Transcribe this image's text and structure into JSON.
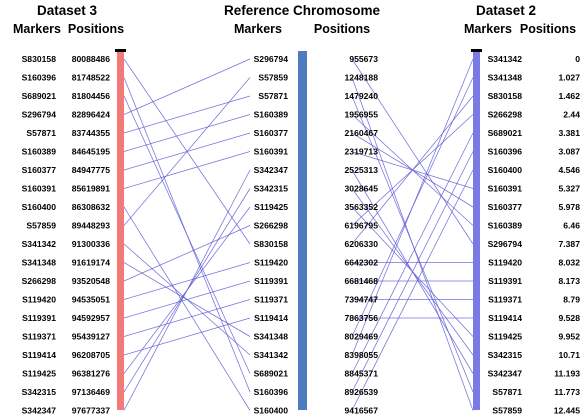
{
  "panels": [
    {
      "title": "Dataset 3",
      "col_markers": "Markers",
      "col_positions": "Positions",
      "bar_color": "#f47a7a",
      "rows": [
        {
          "marker": "S830158",
          "position": "80088486"
        },
        {
          "marker": "S160396",
          "position": "81748522"
        },
        {
          "marker": "S689021",
          "position": "81804456"
        },
        {
          "marker": "S296794",
          "position": "82896424"
        },
        {
          "marker": "S57871",
          "position": "83744355"
        },
        {
          "marker": "S160389",
          "position": "84645195"
        },
        {
          "marker": "S160377",
          "position": "84947775"
        },
        {
          "marker": "S160391",
          "position": "85619891"
        },
        {
          "marker": "S160400",
          "position": "86308632"
        },
        {
          "marker": "S57859",
          "position": "89448293"
        },
        {
          "marker": "S341342",
          "position": "91300336"
        },
        {
          "marker": "S341348",
          "position": "91619174"
        },
        {
          "marker": "S266298",
          "position": "93520548"
        },
        {
          "marker": "S119420",
          "position": "94535051"
        },
        {
          "marker": "S119391",
          "position": "94592957"
        },
        {
          "marker": "S119371",
          "position": "95439127"
        },
        {
          "marker": "S119414",
          "position": "96208705"
        },
        {
          "marker": "S119425",
          "position": "96381276"
        },
        {
          "marker": "S342315",
          "position": "97136469"
        },
        {
          "marker": "S342347",
          "position": "97677337"
        }
      ]
    },
    {
      "title": "Reference Chromosome",
      "col_markers": "Markers",
      "col_positions": "Positions",
      "bar_color": "#4f7cc0",
      "rows": [
        {
          "marker": "S296794",
          "position": "955673"
        },
        {
          "marker": "S57859",
          "position": "1248188"
        },
        {
          "marker": "S57871",
          "position": "1479240"
        },
        {
          "marker": "S160389",
          "position": "1956955"
        },
        {
          "marker": "S160377",
          "position": "2160467"
        },
        {
          "marker": "S160391",
          "position": "2319713"
        },
        {
          "marker": "S342347",
          "position": "2525313"
        },
        {
          "marker": "S342315",
          "position": "3028645"
        },
        {
          "marker": "S119425",
          "position": "3563352"
        },
        {
          "marker": "S266298",
          "position": "6196795"
        },
        {
          "marker": "S830158",
          "position": "6206330"
        },
        {
          "marker": "S119420",
          "position": "6642302"
        },
        {
          "marker": "S119391",
          "position": "6681468"
        },
        {
          "marker": "S119371",
          "position": "7394747"
        },
        {
          "marker": "S119414",
          "position": "7863756"
        },
        {
          "marker": "S341348",
          "position": "8029469"
        },
        {
          "marker": "S341342",
          "position": "8398055"
        },
        {
          "marker": "S689021",
          "position": "8845371"
        },
        {
          "marker": "S160396",
          "position": "8926539"
        },
        {
          "marker": "S160400",
          "position": "9416567"
        }
      ]
    },
    {
      "title": "Dataset 2",
      "col_markers": "Markers",
      "col_positions": "Positions",
      "bar_color": "#7a7ae6",
      "rows": [
        {
          "marker": "S341342",
          "position": "0"
        },
        {
          "marker": "S341348",
          "position": "1.027"
        },
        {
          "marker": "S830158",
          "position": "1.462"
        },
        {
          "marker": "S266298",
          "position": "2.44"
        },
        {
          "marker": "S689021",
          "position": "3.381"
        },
        {
          "marker": "S160396",
          "position": "3.087"
        },
        {
          "marker": "S160400",
          "position": "4.546"
        },
        {
          "marker": "S160391",
          "position": "5.327"
        },
        {
          "marker": "S160377",
          "position": "5.978"
        },
        {
          "marker": "S160389",
          "position": "6.46"
        },
        {
          "marker": "S296794",
          "position": "7.387"
        },
        {
          "marker": "S119420",
          "position": "8.032"
        },
        {
          "marker": "S119391",
          "position": "8.173"
        },
        {
          "marker": "S119371",
          "position": "8.79"
        },
        {
          "marker": "S119414",
          "position": "9.528"
        },
        {
          "marker": "S119425",
          "position": "9.952"
        },
        {
          "marker": "S342315",
          "position": "10.71"
        },
        {
          "marker": "S342347",
          "position": "11.193"
        },
        {
          "marker": "S57871",
          "position": "11.773"
        },
        {
          "marker": "S57859",
          "position": "12.445"
        }
      ]
    }
  ],
  "colors": {
    "connector": "#5b5bd6",
    "bar_cap": "#000000"
  }
}
